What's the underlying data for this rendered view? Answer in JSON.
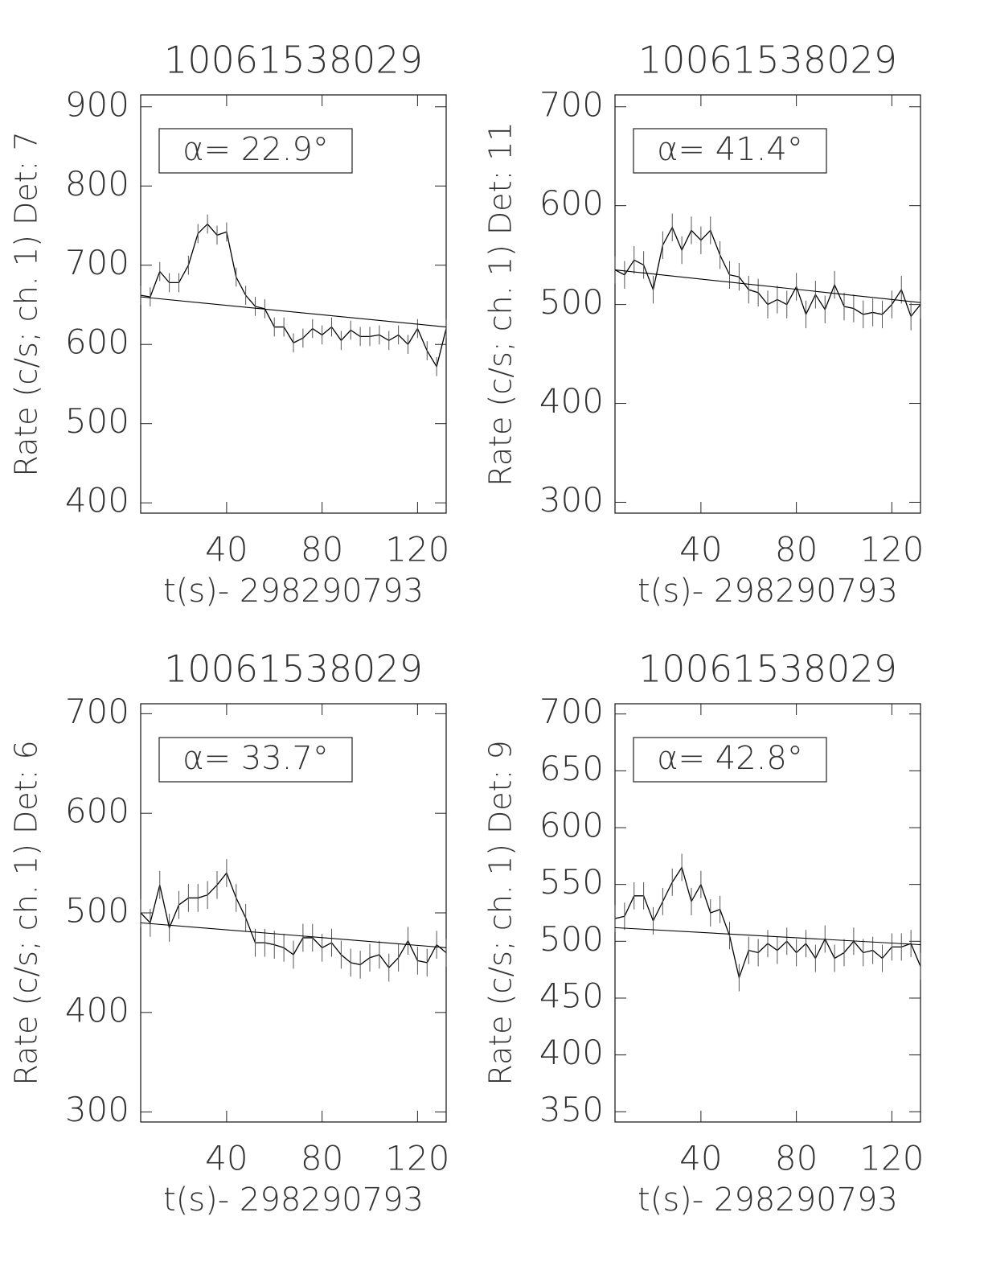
{
  "chart_data": [
    {
      "type": "line",
      "title": "10061538029",
      "y_label": "Rate (c/s; ch. 1) Det: 7",
      "x_label": "t(s)- 298290793",
      "annotation": "α= 22.9°",
      "color": "#000000",
      "x": [
        4,
        8,
        12,
        16,
        20,
        24,
        28,
        32,
        36,
        40,
        44,
        48,
        52,
        56,
        60,
        64,
        68,
        72,
        76,
        80,
        84,
        88,
        92,
        96,
        100,
        104,
        108,
        112,
        116,
        120,
        124,
        128,
        132
      ],
      "values": [
        662,
        660,
        692,
        678,
        678,
        700,
        740,
        752,
        738,
        742,
        685,
        662,
        648,
        645,
        622,
        622,
        602,
        608,
        620,
        612,
        622,
        605,
        618,
        610,
        610,
        612,
        605,
        612,
        600,
        620,
        592,
        572,
        620
      ],
      "error": 12,
      "fit": {
        "x": [
          4,
          132
        ],
        "values": [
          660,
          622
        ]
      },
      "xlim": [
        4,
        132
      ],
      "xticks": [
        40,
        80,
        120
      ],
      "ylim": [
        387,
        915
      ],
      "yticks": [
        400,
        500,
        600,
        700,
        800,
        900
      ]
    },
    {
      "type": "line",
      "title": "10061538029",
      "y_label": "Rate (c/s; ch. 1) Det: 11",
      "x_label": "t(s)- 298290793",
      "annotation": "α= 41.4°",
      "color": "#000000",
      "x": [
        4,
        8,
        12,
        16,
        20,
        24,
        28,
        32,
        36,
        40,
        44,
        48,
        52,
        56,
        60,
        64,
        68,
        72,
        76,
        80,
        84,
        88,
        92,
        96,
        100,
        104,
        108,
        112,
        116,
        120,
        124,
        128,
        132
      ],
      "values": [
        535,
        530,
        545,
        540,
        515,
        560,
        578,
        555,
        575,
        565,
        575,
        550,
        530,
        528,
        515,
        512,
        500,
        505,
        500,
        518,
        490,
        510,
        495,
        520,
        498,
        496,
        490,
        492,
        490,
        500,
        515,
        488,
        500
      ],
      "error": 14,
      "fit": {
        "x": [
          4,
          132
        ],
        "values": [
          535,
          502
        ]
      },
      "xlim": [
        4,
        132
      ],
      "xticks": [
        40,
        80,
        120
      ],
      "ylim": [
        289,
        712
      ],
      "yticks": [
        300,
        400,
        500,
        600,
        700
      ]
    },
    {
      "type": "line",
      "title": "10061538029",
      "y_label": "Rate (c/s; ch. 1) Det: 6",
      "x_label": "t(s)- 298290793",
      "annotation": "α= 33.7°",
      "color": "#000000",
      "x": [
        4,
        8,
        12,
        16,
        20,
        24,
        28,
        32,
        36,
        40,
        44,
        48,
        52,
        56,
        60,
        64,
        68,
        72,
        76,
        80,
        84,
        88,
        92,
        96,
        100,
        104,
        108,
        112,
        116,
        120,
        124,
        128,
        132
      ],
      "values": [
        500,
        490,
        528,
        485,
        508,
        515,
        515,
        518,
        528,
        540,
        515,
        495,
        470,
        470,
        468,
        465,
        458,
        475,
        475,
        465,
        470,
        458,
        450,
        448,
        455,
        458,
        445,
        455,
        472,
        452,
        450,
        468,
        460
      ],
      "error": 14,
      "fit": {
        "x": [
          4,
          132
        ],
        "values": [
          490,
          465
        ]
      },
      "xlim": [
        4,
        132
      ],
      "xticks": [
        40,
        80,
        120
      ],
      "ylim": [
        290,
        710
      ],
      "yticks": [
        300,
        400,
        500,
        600,
        700
      ]
    },
    {
      "type": "line",
      "title": "10061538029",
      "y_label": "Rate (c/s; ch. 1) Det: 9",
      "x_label": "t(s)- 298290793",
      "annotation": "α= 42.8°",
      "color": "#000000",
      "x": [
        4,
        8,
        12,
        16,
        20,
        24,
        28,
        32,
        36,
        40,
        44,
        48,
        52,
        56,
        60,
        64,
        68,
        72,
        76,
        80,
        84,
        88,
        92,
        96,
        100,
        104,
        108,
        112,
        116,
        120,
        124,
        128,
        132
      ],
      "values": [
        520,
        522,
        540,
        540,
        518,
        535,
        552,
        565,
        535,
        550,
        525,
        528,
        505,
        468,
        492,
        490,
        498,
        492,
        500,
        490,
        498,
        485,
        502,
        485,
        490,
        500,
        490,
        492,
        485,
        495,
        495,
        498,
        478
      ],
      "error": 12,
      "fit": {
        "x": [
          4,
          132
        ],
        "values": [
          512,
          497
        ]
      },
      "xlim": [
        4,
        132
      ],
      "xticks": [
        40,
        80,
        120
      ],
      "ylim": [
        341,
        709
      ],
      "yticks": [
        350,
        400,
        450,
        500,
        550,
        600,
        650,
        700
      ]
    }
  ]
}
